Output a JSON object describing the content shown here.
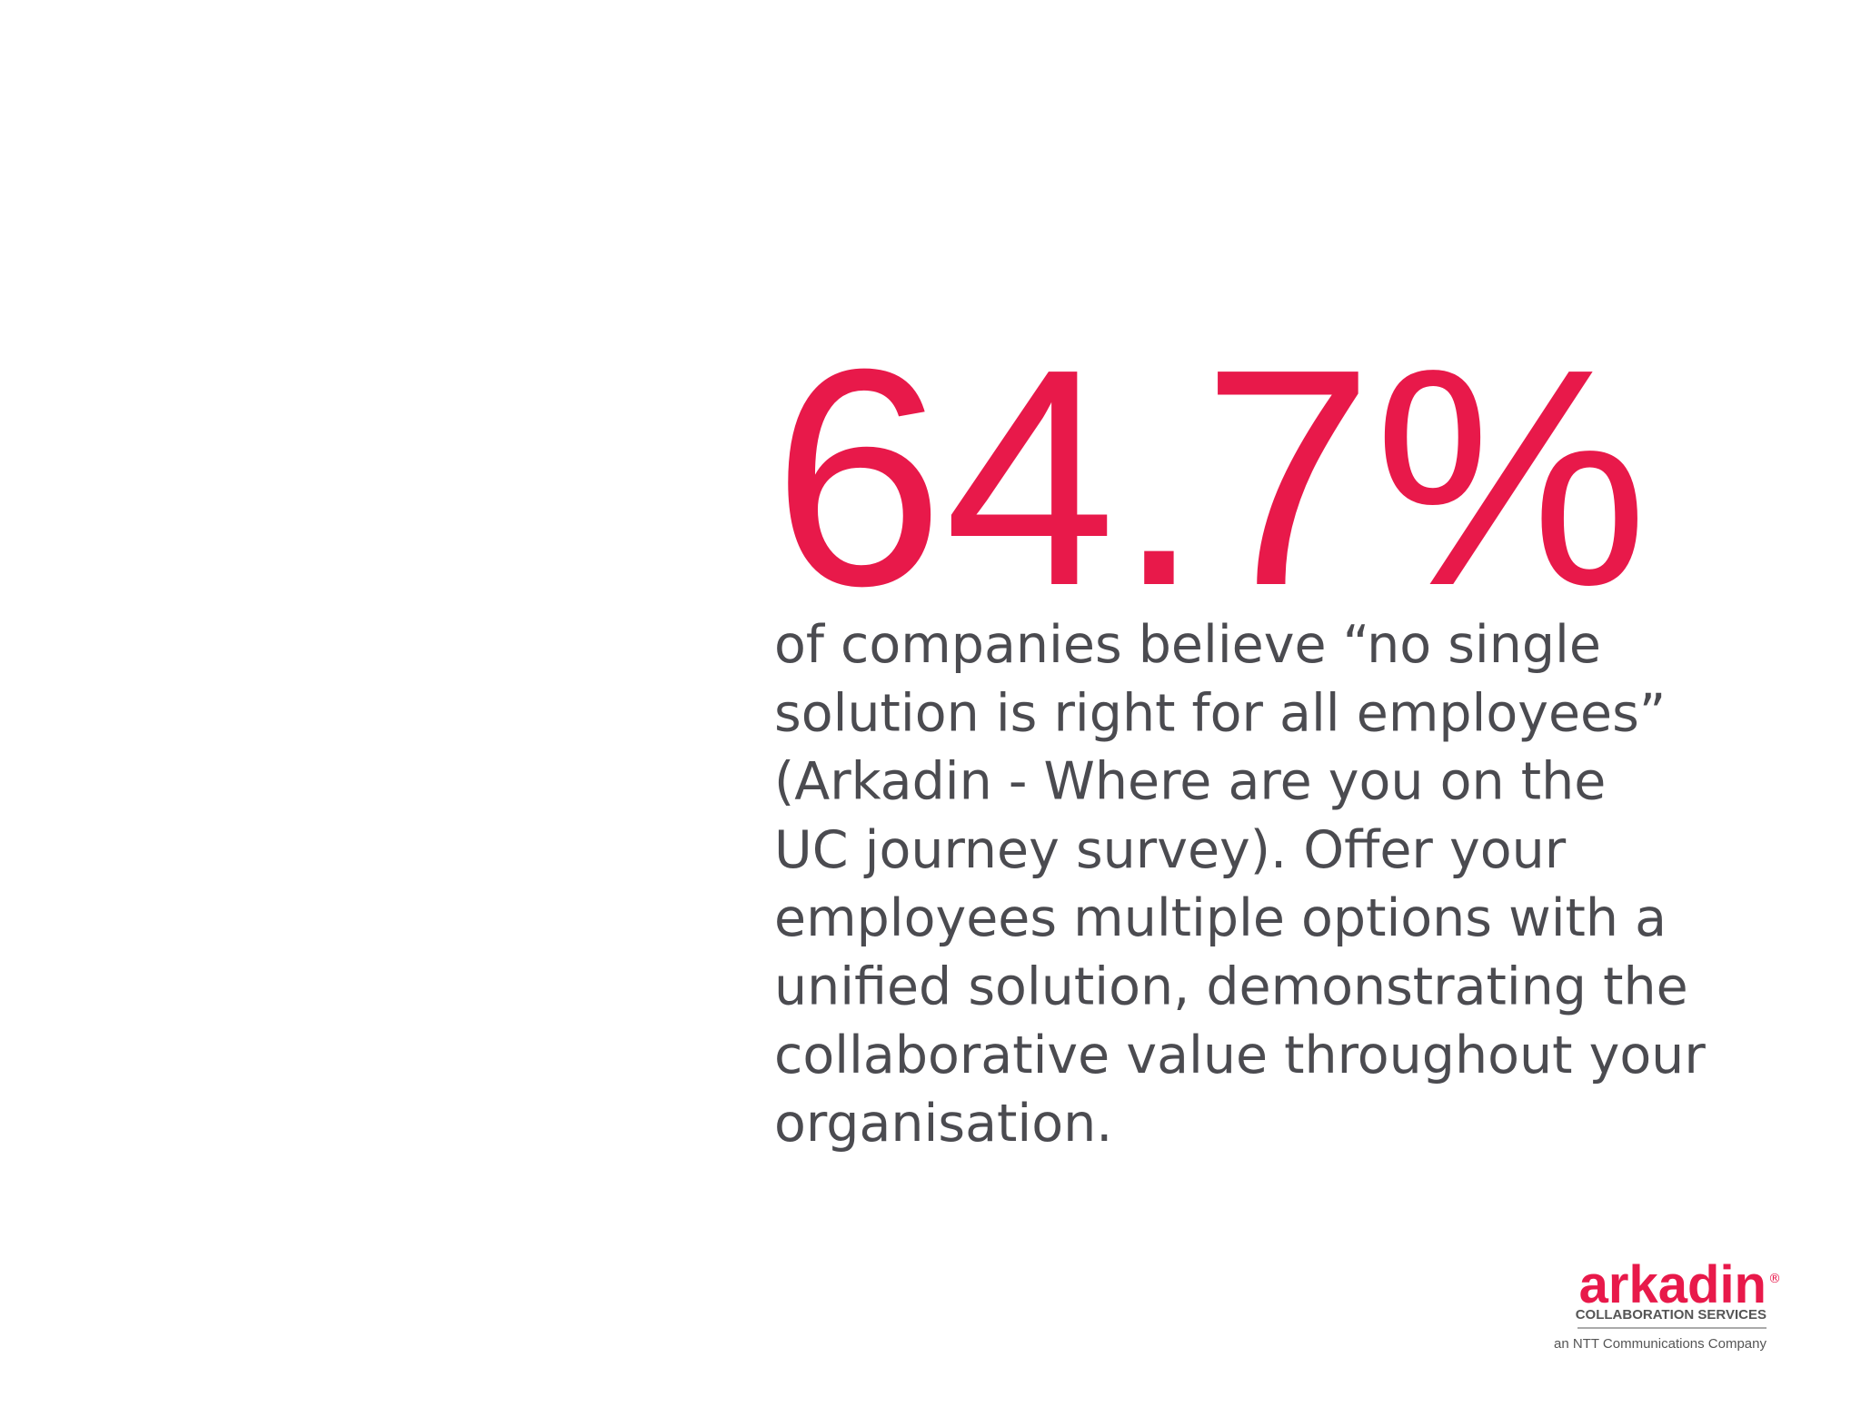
{
  "stat": {
    "value": "64.7%"
  },
  "body": {
    "lines": [
      "of companies believe “no single",
      "solution is right for all employees”",
      "(Arkadin - Where are you on the",
      "UC journey survey). Offer your",
      "employees multiple options with a",
      "unified solution, demonstrating the",
      "collaborative value throughout your",
      "organisation."
    ]
  },
  "logo": {
    "name": "arkadin",
    "registered": "®",
    "tagline": "COLLABORATION SERVICES",
    "parent": "an NTT Communications Company"
  }
}
